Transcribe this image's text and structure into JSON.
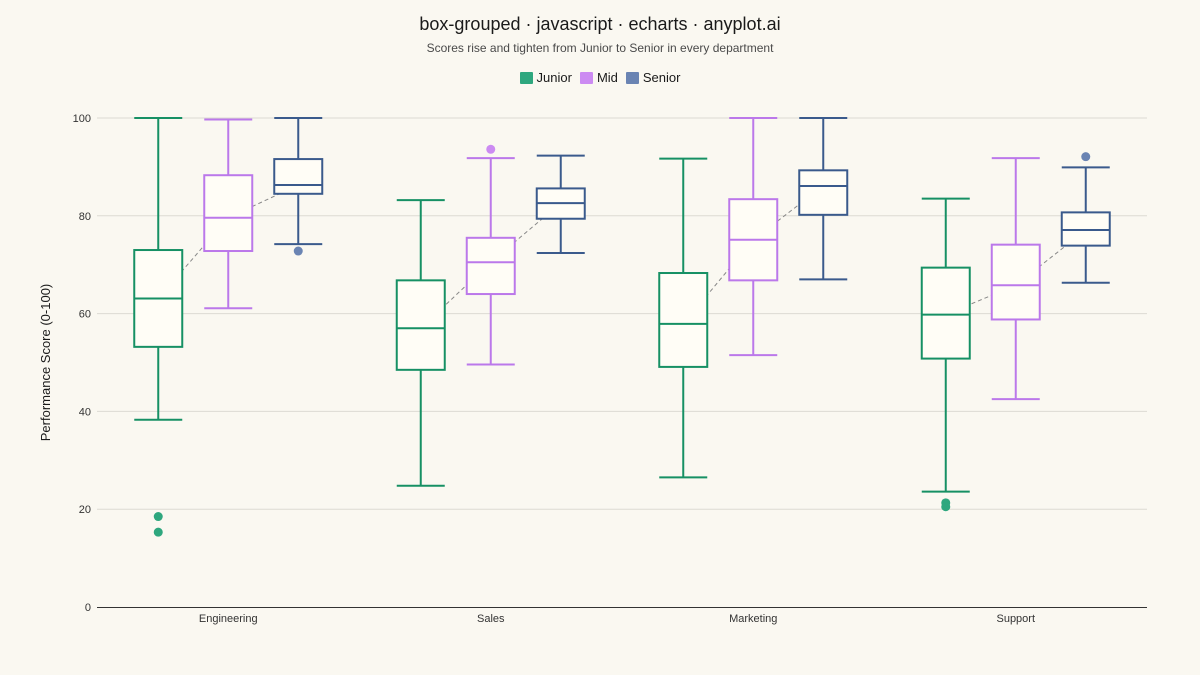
{
  "chart_data": {
    "type": "boxplot",
    "title": "box-grouped · javascript · echarts · anyplot.ai",
    "subtitle": "Scores rise and tighten from Junior to Senior in every department",
    "xlabel": "",
    "ylabel": "Performance Score (0-100)",
    "ylim": [
      0,
      100
    ],
    "yticks": [
      0,
      20,
      40,
      60,
      80,
      100
    ],
    "grid": true,
    "legend_position": "top-center",
    "categories": [
      "Engineering",
      "Sales",
      "Marketing",
      "Support"
    ],
    "median_trend_line": "dashed",
    "series": [
      {
        "name": "Junior",
        "color": "#2EA77E",
        "stroke": "#169064",
        "boxes": [
          {
            "min": 38.3,
            "q1": 53.2,
            "median": 63.1,
            "q3": 73.0,
            "max": 100
          },
          {
            "min": 24.8,
            "q1": 48.5,
            "median": 57.0,
            "q3": 66.8,
            "max": 83.2
          },
          {
            "min": 26.5,
            "q1": 49.1,
            "median": 57.9,
            "q3": 68.3,
            "max": 91.7
          },
          {
            "min": 23.6,
            "q1": 50.8,
            "median": 59.8,
            "q3": 69.4,
            "max": 83.5
          }
        ],
        "outliers": [
          [
            0,
            18.5
          ],
          [
            0,
            15.3
          ],
          [
            3,
            21.3
          ],
          [
            3,
            20.5
          ]
        ]
      },
      {
        "name": "Mid",
        "color": "#CC8BF2",
        "stroke": "#BB78EA",
        "boxes": [
          {
            "min": 61.1,
            "q1": 72.8,
            "median": 79.6,
            "q3": 88.3,
            "max": 99.7
          },
          {
            "min": 49.6,
            "q1": 64.0,
            "median": 70.5,
            "q3": 75.5,
            "max": 91.8
          },
          {
            "min": 51.5,
            "q1": 66.8,
            "median": 75.1,
            "q3": 83.4,
            "max": 100
          },
          {
            "min": 42.5,
            "q1": 58.8,
            "median": 65.8,
            "q3": 74.1,
            "max": 91.8
          }
        ],
        "outliers": [
          [
            1,
            93.6
          ]
        ]
      },
      {
        "name": "Senior",
        "color": "#6A84B3",
        "stroke": "#3A5A8C",
        "boxes": [
          {
            "min": 74.2,
            "q1": 84.5,
            "median": 86.3,
            "q3": 91.6,
            "max": 100
          },
          {
            "min": 72.4,
            "q1": 79.4,
            "median": 82.6,
            "q3": 85.6,
            "max": 92.3
          },
          {
            "min": 67.0,
            "q1": 80.2,
            "median": 86.1,
            "q3": 89.3,
            "max": 100
          },
          {
            "min": 66.3,
            "q1": 73.9,
            "median": 77.1,
            "q3": 80.7,
            "max": 89.9
          }
        ],
        "outliers": [
          [
            0,
            72.8
          ],
          [
            3,
            92.1
          ]
        ]
      }
    ]
  }
}
